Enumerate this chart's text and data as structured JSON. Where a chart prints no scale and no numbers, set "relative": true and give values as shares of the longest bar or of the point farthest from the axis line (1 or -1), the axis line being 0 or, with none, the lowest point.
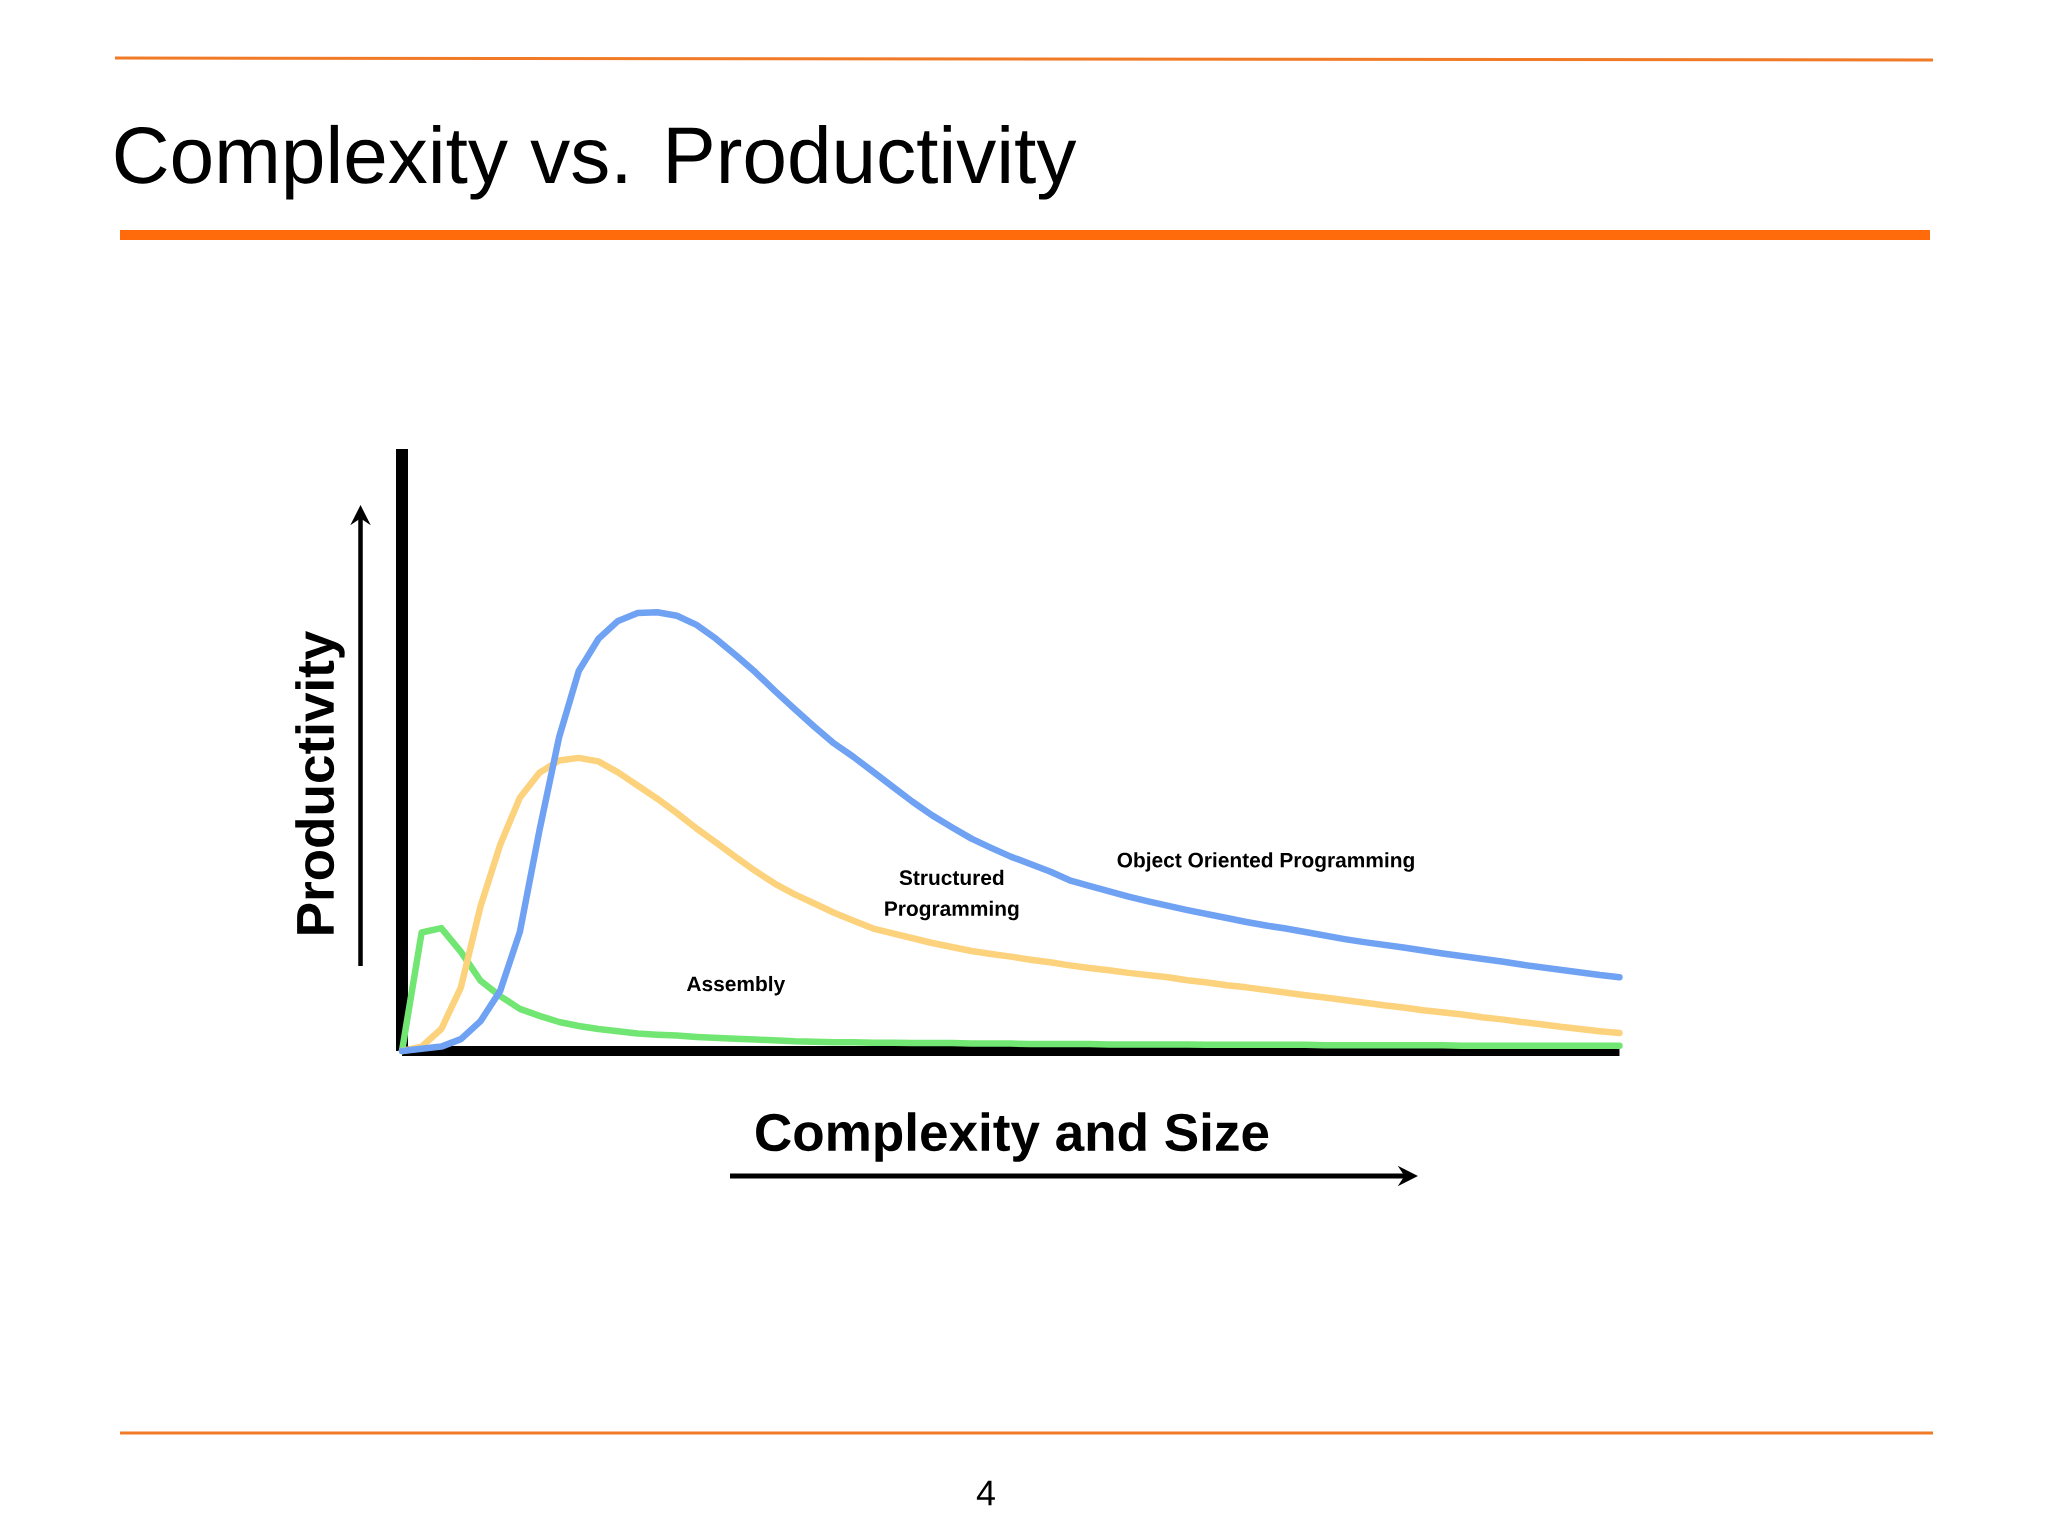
{
  "chart_data": {
    "type": "line",
    "title": "Complexity vs. Productivity",
    "xlabel": "Complexity and Size",
    "ylabel": "Productivity",
    "relative": true,
    "marker": "none",
    "categories": [
      null,
      null,
      null,
      null,
      null,
      null,
      null,
      null,
      null,
      null,
      null,
      null,
      null,
      null,
      null,
      null,
      null,
      null,
      null,
      null,
      null,
      null,
      null,
      null,
      null,
      null,
      null,
      null,
      null,
      null,
      null,
      null,
      null,
      null,
      null,
      null,
      null,
      null,
      null,
      null,
      null,
      null,
      null,
      null,
      null,
      null,
      null,
      null,
      null,
      null,
      null,
      null,
      null,
      null,
      null,
      null,
      null,
      null,
      null,
      null,
      null,
      null,
      null
    ],
    "series": [
      {
        "name": "Assembly",
        "color": "#72e673",
        "values": [
          0,
          0.27,
          0.28,
          0.226,
          0.16,
          0.125,
          0.096,
          0.08,
          0.066,
          0.057,
          0.05,
          0.045,
          0.04,
          0.037,
          0.035,
          0.032,
          0.03,
          0.028,
          0.026,
          0.024,
          0.022,
          0.021,
          0.02,
          0.02,
          0.019,
          0.019,
          0.018,
          0.018,
          0.018,
          0.017,
          0.017,
          0.017,
          0.016,
          0.016,
          0.016,
          0.016,
          0.015,
          0.015,
          0.015,
          0.015,
          0.015,
          0.014,
          0.014,
          0.014,
          0.014,
          0.014,
          0.014,
          0.013,
          0.013,
          0.013,
          0.013,
          0.013,
          0.013,
          0.013,
          0.012,
          0.012,
          0.012,
          0.012,
          0.012,
          0.012,
          0.012,
          0.012,
          0.012
        ]
      },
      {
        "name": "Structured Programming",
        "color": "#fdd27d",
        "values": [
          0,
          0.01,
          0.05,
          0.145,
          0.33,
          0.47,
          0.577,
          0.634,
          0.662,
          0.668,
          0.66,
          0.635,
          0.605,
          0.575,
          0.542,
          0.507,
          0.475,
          0.442,
          0.41,
          0.381,
          0.357,
          0.336,
          0.315,
          0.297,
          0.279,
          0.268,
          0.257,
          0.246,
          0.237,
          0.228,
          0.221,
          0.215,
          0.208,
          0.202,
          0.195,
          0.189,
          0.184,
          0.178,
          0.173,
          0.168,
          0.161,
          0.156,
          0.15,
          0.145,
          0.139,
          0.133,
          0.127,
          0.122,
          0.116,
          0.11,
          0.104,
          0.099,
          0.093,
          0.088,
          0.083,
          0.077,
          0.072,
          0.066,
          0.061,
          0.055,
          0.05,
          0.045,
          0.041
        ]
      },
      {
        "name": "Object Oriented Programming",
        "color": "#70a2f3",
        "values": [
          0,
          0.005,
          0.01,
          0.027,
          0.068,
          0.137,
          0.271,
          0.503,
          0.715,
          0.866,
          0.939,
          0.98,
          0.998,
          1,
          0.992,
          0.971,
          0.939,
          0.902,
          0.863,
          0.82,
          0.779,
          0.739,
          0.701,
          0.67,
          0.636,
          0.602,
          0.568,
          0.537,
          0.51,
          0.484,
          0.463,
          0.443,
          0.426,
          0.409,
          0.389,
          0.376,
          0.364,
          0.352,
          0.341,
          0.331,
          0.321,
          0.312,
          0.303,
          0.294,
          0.286,
          0.279,
          0.271,
          0.263,
          0.255,
          0.248,
          0.242,
          0.236,
          0.229,
          0.222,
          0.216,
          0.21,
          0.204,
          0.197,
          0.191,
          0.185,
          0.179,
          0.173,
          0.168
        ]
      }
    ],
    "annotations": [
      "4"
    ]
  }
}
